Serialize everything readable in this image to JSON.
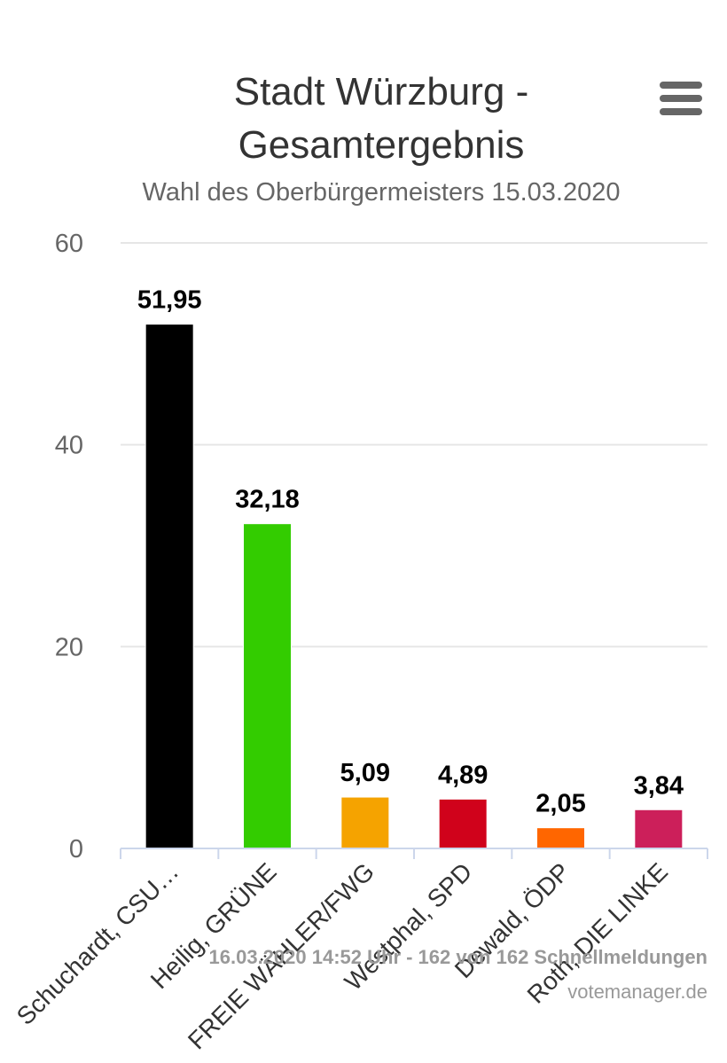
{
  "chart_data": {
    "type": "bar",
    "title_line1": "Stadt Würzburg -",
    "title_line2": "Gesamtergebnis",
    "subtitle": "Wahl des Oberbürgermeisters 15.03.2020",
    "categories": [
      "Schuchardt, CSU…",
      "Heilig, GRÜNE",
      "FREIE WÄHLER/FWG",
      "Westphal, SPD",
      "Dewald, ÖDP",
      "Roth, DIE LINKE"
    ],
    "values": [
      51.95,
      32.18,
      5.09,
      4.89,
      2.05,
      3.84
    ],
    "value_labels": [
      "51,95",
      "32,18",
      "5,09",
      "4,89",
      "2,05",
      "3,84"
    ],
    "colors": [
      "#000000",
      "#33cc00",
      "#f5a300",
      "#d0021b",
      "#ff6600",
      "#cc1f5a"
    ],
    "ylim": [
      0,
      60
    ],
    "yticks": [
      0,
      20,
      40,
      60
    ],
    "grid": true,
    "legend": false
  },
  "menu_icon": "hamburger-menu-icon",
  "credits": {
    "line1": "16.03.2020 14:52 Uhr - 162 von 162 Schnellmeldungen",
    "line2": "votemanager.de"
  }
}
